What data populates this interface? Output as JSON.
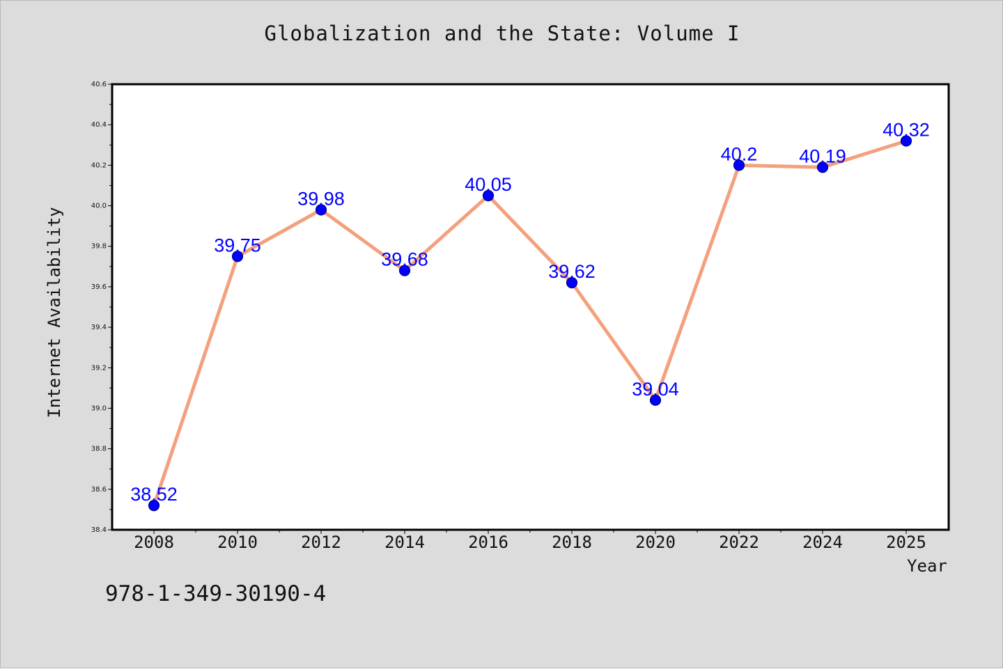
{
  "isbn": "978-1-349-30190-4",
  "chart_data": {
    "type": "line",
    "title": "Globalization and the State: Volume I",
    "xlabel": "Year",
    "ylabel": "Internet Availability",
    "categories": [
      "2008",
      "2010",
      "2012",
      "2014",
      "2016",
      "2018",
      "2020",
      "2022",
      "2024",
      "2025"
    ],
    "series": [
      {
        "values": [
          38.52,
          39.75,
          39.98,
          39.68,
          40.05,
          39.62,
          39.04,
          40.2,
          40.19,
          40.32
        ],
        "data_labels": [
          "38.52",
          "39.75",
          "39.98",
          "39.68",
          "40.05",
          "39.62",
          "39.04",
          "40.2",
          "40.19",
          "40.32"
        ]
      }
    ],
    "ylim": [
      38.4,
      40.6
    ],
    "yticks": [
      "38.4",
      "38.6",
      "38.8",
      "39.0",
      "39.2",
      "39.4",
      "39.6",
      "39.8",
      "40.0",
      "40.2",
      "40.4",
      "40.6"
    ],
    "grid": false,
    "legend": "none",
    "colors": {
      "line": "#f4a07c",
      "marker": "#0000ff",
      "marker_edge": "#000080",
      "data_label": "#0000ff",
      "plot_background": "#ffffff",
      "page_background": "#dcdcdc"
    }
  }
}
